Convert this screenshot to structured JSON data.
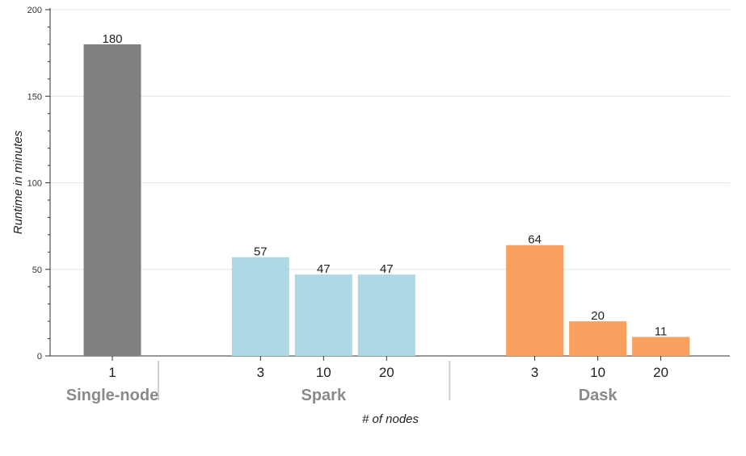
{
  "chart_data": {
    "type": "bar",
    "xlabel": "# of nodes",
    "ylabel": "Runtime in minutes",
    "ylim": [
      0,
      200
    ],
    "yticks": [
      0,
      50,
      100,
      150,
      200
    ],
    "grid": true,
    "groups": [
      {
        "name": "Single-node",
        "color": "#808080",
        "bars": [
          {
            "category": "1",
            "value": 180
          }
        ]
      },
      {
        "name": "Spark",
        "color": "#add8e6",
        "bars": [
          {
            "category": "3",
            "value": 57
          },
          {
            "category": "10",
            "value": 47
          },
          {
            "category": "20",
            "value": 47
          }
        ]
      },
      {
        "name": "Dask",
        "color": "#fba160",
        "bars": [
          {
            "category": "3",
            "value": 64
          },
          {
            "category": "10",
            "value": 20
          },
          {
            "category": "20",
            "value": 11
          }
        ]
      }
    ]
  }
}
